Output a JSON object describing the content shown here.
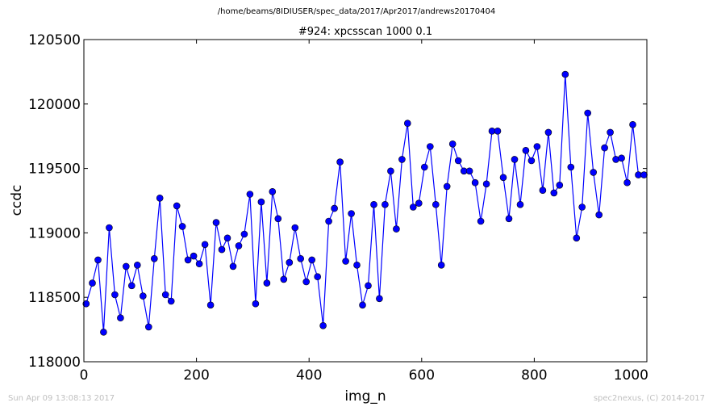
{
  "header": {
    "path": "/home/beams/8IDIUSER/spec_data/2017/Apr2017/andrews20170404"
  },
  "footer": {
    "timestamp": "Sun Apr 09 13:08:13 2017",
    "credit": "spec2nexus, (C) 2014-2017"
  },
  "colors": {
    "line": "#0000ff",
    "marker_fill": "#0000ff",
    "marker_edge": "#000000"
  },
  "chart_data": {
    "type": "line",
    "title": "#924: xpcsscan 1000 0.1",
    "xlabel": "img_n",
    "ylabel": "ccdc",
    "xlim": [
      0,
      1000
    ],
    "ylim": [
      118000,
      120500
    ],
    "xticks": [
      0,
      200,
      400,
      600,
      800,
      1000
    ],
    "xtick_labels": [
      "0",
      "200",
      "400",
      "600",
      "800",
      "1000"
    ],
    "yticks": [
      118000,
      118500,
      119000,
      119500,
      120000,
      120500
    ],
    "ytick_labels": [
      "118000",
      "118500",
      "119000",
      "119500",
      "120000",
      "120500"
    ],
    "grid": false,
    "series": [
      {
        "x": [
          4,
          15,
          25,
          35,
          45,
          55,
          65,
          75,
          85,
          95,
          105,
          115,
          125,
          135,
          145,
          155,
          165,
          175,
          185,
          195,
          205,
          215,
          225,
          235,
          245,
          255,
          265,
          275,
          285,
          295,
          305,
          315,
          325,
          335,
          345,
          355,
          365,
          375,
          385,
          395,
          405,
          415,
          425,
          435,
          445,
          455,
          465,
          475,
          485,
          495,
          505,
          515,
          525,
          535,
          545,
          555,
          565,
          575,
          585,
          595,
          605,
          615,
          625,
          635,
          645,
          655,
          665,
          675,
          685,
          695,
          705,
          715,
          725,
          735,
          745,
          755,
          765,
          775,
          785,
          795,
          805,
          815,
          825,
          835,
          845,
          855,
          865,
          875,
          885,
          895,
          905,
          915,
          925,
          935,
          945,
          955,
          965,
          975,
          985,
          995
        ],
        "values": [
          118450,
          118610,
          118790,
          118230,
          119040,
          118520,
          118340,
          118740,
          118590,
          118750,
          118510,
          118270,
          118800,
          119270,
          118520,
          118470,
          119210,
          119050,
          118790,
          118820,
          118760,
          118910,
          118440,
          119080,
          118870,
          118960,
          118740,
          118900,
          118990,
          119300,
          118450,
          119240,
          118610,
          119320,
          119110,
          118640,
          118770,
          119040,
          118800,
          118620,
          118790,
          118660,
          118280,
          119090,
          119190,
          119550,
          118780,
          119150,
          118750,
          118440,
          118590,
          119220,
          118490,
          119220,
          119480,
          119030,
          119570,
          119850,
          119200,
          119230,
          119510,
          119670,
          119220,
          118750,
          119360,
          119690,
          119560,
          119480,
          119480,
          119390,
          119090,
          119380,
          119790,
          119790,
          119430,
          119110,
          119570,
          119220,
          119640,
          119560,
          119670,
          119330,
          119780,
          119310,
          119370,
          120230,
          119510,
          118960,
          119200,
          119930,
          119470,
          119140,
          119660,
          119780,
          119570,
          119580,
          119390,
          119840,
          119450,
          119450
        ]
      }
    ]
  }
}
